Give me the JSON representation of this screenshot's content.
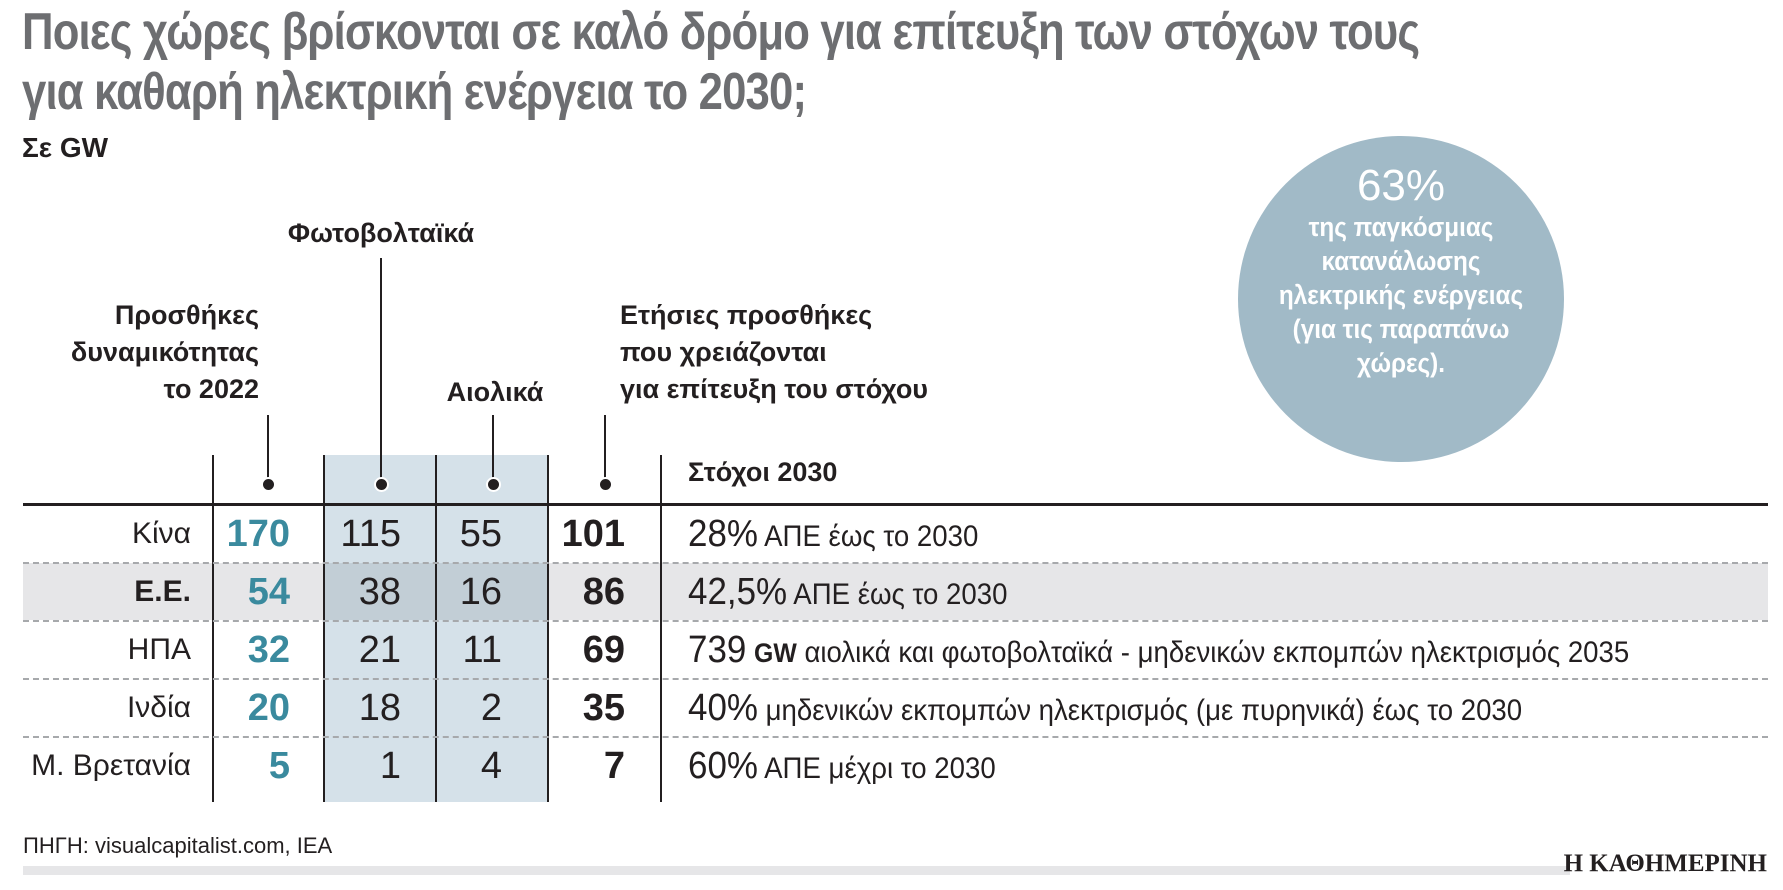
{
  "title": {
    "line1": "Ποιες χώρες βρίσκονται σε καλό δρόμο για επίτευξη των στόχων τους",
    "line2": "για καθαρή ηλεκτρική ενέργεια το 2030;"
  },
  "subtitle": "Σε GW",
  "callout": {
    "value": "63%",
    "text": [
      "της παγκόσμιας",
      "κατανάλωσης",
      "ηλεκτρικής ενέργειας",
      "(για τις παραπάνω",
      "χώρες)."
    ]
  },
  "colors": {
    "title": "#6d6e71",
    "accent": "#3a8a9e",
    "circle": "#a1bac7",
    "shade": "#d5e1e9",
    "highlight_row": "#e6e6e8"
  },
  "chart_data": {
    "type": "table",
    "columns": {
      "additions_2022": [
        "Προσθήκες",
        "δυναμικότητας",
        "το 2022"
      ],
      "solar": "Φωτοβολταϊκά",
      "wind": "Αιολικά",
      "annual_needed": [
        "Ετήσιες προσθήκες",
        "που χρειάζονται",
        "για επίτευξη του στόχου"
      ],
      "targets": "Στόχοι 2030"
    },
    "rows": [
      {
        "country": "Κίνα",
        "additions_2022": "170",
        "solar": "115",
        "wind": "55",
        "annual_needed": "101",
        "target_value": "28%",
        "target_text": "ΑΠΕ έως το 2030",
        "highlight": false
      },
      {
        "country": "Ε.Ε.",
        "additions_2022": "54",
        "solar": "38",
        "wind": "16",
        "annual_needed": "86",
        "target_value": "42,5%",
        "target_text": "ΑΠΕ έως το 2030",
        "highlight": true
      },
      {
        "country": "ΗΠΑ",
        "additions_2022": "32",
        "solar": "21",
        "wind": "11",
        "annual_needed": "69",
        "target_value": "739",
        "target_unit": "GW",
        "target_text": "αιολικά και φωτοβολταϊκά - μηδενικών εκπομπών ηλεκτρισμός 2035",
        "highlight": false
      },
      {
        "country": "Ινδία",
        "additions_2022": "20",
        "solar": "18",
        "wind": "2",
        "annual_needed": "35",
        "target_value": "40%",
        "target_text": "μηδενικών εκπομπών ηλεκτρισμός (με πυρηνικά) έως το 2030",
        "highlight": false
      },
      {
        "country": "Μ. Βρετανία",
        "additions_2022": "5",
        "solar": "1",
        "wind": "4",
        "annual_needed": "7",
        "target_value": "60%",
        "target_text": "ΑΠΕ μέχρι το 2030",
        "highlight": false
      }
    ]
  },
  "source": "ΠΗΓΗ: visualcapitalist.com, IEA",
  "logo": "Η ΚΑΘΗΜΕΡΙΝΗ"
}
